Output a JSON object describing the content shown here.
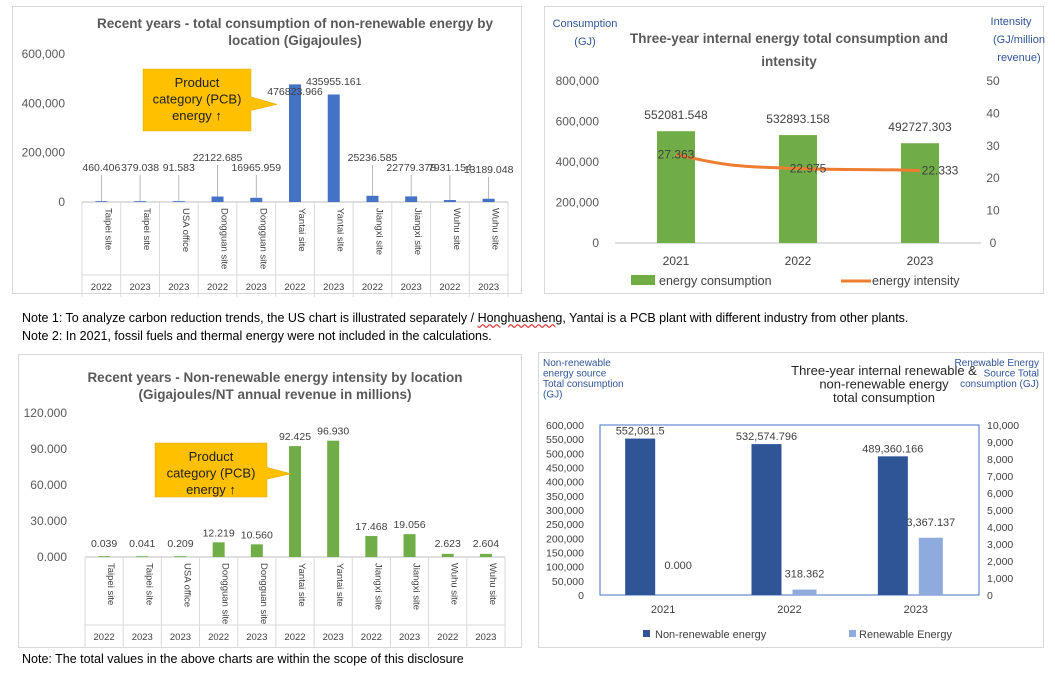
{
  "notes": {
    "note1_a": "Note 1: To analyze carbon reduction trends, the US chart is illustrated separately / ",
    "note1_b": "Honghuasheng",
    "note1_c": ", Yantai is a PCB plant with different industry from other plants.",
    "note2": "Note 2: In 2021, fossil fuels and thermal energy were not included in the calculations.",
    "note3": "Note: The total values in the above charts are within the scope of this disclosure"
  },
  "colors": {
    "blue_bar": "#4472c4",
    "green_bar": "#70ad47",
    "orange_line": "#ed7d31",
    "navy_bar": "#2f5597",
    "light_blue_bar": "#8faadc",
    "callout_fill": "#ffc000",
    "title_text": "#595959",
    "axis_title_blue": "#2f5597"
  },
  "chart_data": [
    {
      "id": "chart1",
      "type": "bar",
      "title": "Recent years - total consumption of non-renewable energy by location  (Gigajoules)",
      "title_lines": [
        "Recent years - total consumption of non-renewable energy by",
        "location  (Gigajoules)"
      ],
      "categories": [
        {
          "site": "Taipei site",
          "year": "2022"
        },
        {
          "site": "Taipei site",
          "year": "2023"
        },
        {
          "site": "USA office",
          "year": "2023"
        },
        {
          "site": "Dongguan site",
          "year": "2022"
        },
        {
          "site": "Dongguan site",
          "year": "2023"
        },
        {
          "site": "Yantai site",
          "year": "2022"
        },
        {
          "site": "Yantai site",
          "year": "2023"
        },
        {
          "site": "Jiangxi site",
          "year": "2022"
        },
        {
          "site": "Jiangxi site",
          "year": "2023"
        },
        {
          "site": "Wuhu site",
          "year": "2022"
        },
        {
          "site": "Wuhu site",
          "year": "2023"
        }
      ],
      "values": [
        460.406,
        379.038,
        91.583,
        22122.685,
        16965.959,
        476823.966,
        435955.161,
        25236.585,
        22779.378,
        7931.154,
        13189.048
      ],
      "data_labels": [
        "460.406",
        "379.038",
        "91.583",
        "22122.685",
        "16965.959",
        "476823.966",
        "435955.161",
        "25236.585",
        "22779.378",
        "7931.154",
        "13189.048"
      ],
      "yticks": [
        "0",
        "200,000",
        "400,000",
        "600,000"
      ],
      "ylim": [
        0,
        600000
      ],
      "callout_lines": [
        "Product",
        "category (PCB)",
        "energy ↑"
      ],
      "grid": false
    },
    {
      "id": "chart2",
      "type": "bar+line",
      "title_lines": [
        "Three-year internal energy total consumption and",
        "intensity"
      ],
      "y_left_title": [
        "Consumption",
        "(GJ)"
      ],
      "y_right_title": [
        "Intensity",
        "(GJ/million",
        "revenue)"
      ],
      "categories": [
        "2021",
        "2022",
        "2023"
      ],
      "series": [
        {
          "name": "energy consumption",
          "type": "bar",
          "values": [
            552081.548,
            532893.158,
            492727.303
          ],
          "labels": [
            "552081.548",
            "532893.158",
            "492727.303"
          ]
        },
        {
          "name": "energy intensity",
          "type": "line",
          "values": [
            27.363,
            22.975,
            22.333
          ],
          "labels": [
            "27.363",
            "22.975",
            "22.333"
          ]
        }
      ],
      "yticks_left": [
        "0",
        "200,000",
        "400,000",
        "600,000",
        "800,000"
      ],
      "ylim_left": [
        0,
        800000
      ],
      "yticks_right": [
        "0",
        "10",
        "20",
        "30",
        "40",
        "50"
      ],
      "ylim_right": [
        0,
        50
      ],
      "legend": "bottom"
    },
    {
      "id": "chart3",
      "type": "bar",
      "title_lines": [
        "Recent years - Non-renewable energy intensity by location",
        "(Gigajoules/NT annual revenue in millions)"
      ],
      "categories": [
        {
          "site": "Taipei site",
          "year": "2022"
        },
        {
          "site": "Taipei site",
          "year": "2023"
        },
        {
          "site": "USA office",
          "year": "2023"
        },
        {
          "site": "Dongguan site",
          "year": "2022"
        },
        {
          "site": "Dongguan site",
          "year": "2023"
        },
        {
          "site": "Yantai site",
          "year": "2022"
        },
        {
          "site": "Yantai site",
          "year": "2023"
        },
        {
          "site": "Jiangxi site",
          "year": "2022"
        },
        {
          "site": "Jiangxi site",
          "year": "2023"
        },
        {
          "site": "Wuhu site",
          "year": "2022"
        },
        {
          "site": "Wuhu site",
          "year": "2023"
        }
      ],
      "values": [
        0.039,
        0.041,
        0.209,
        12.219,
        10.56,
        92.425,
        96.93,
        17.468,
        19.056,
        2.623,
        2.604
      ],
      "data_labels": [
        "0.039",
        "0.041",
        "0.209",
        "12.219",
        "10.560",
        "92.425",
        "96.930",
        "17.468",
        "19.056",
        "2.623",
        "2.604"
      ],
      "yticks": [
        "0.000",
        "30.000",
        "60.000",
        "90.000",
        "120.000"
      ],
      "ylim": [
        0,
        120
      ],
      "callout_lines": [
        "Product",
        "category (PCB)",
        "energy ↑"
      ],
      "grid": false
    },
    {
      "id": "chart4",
      "type": "bar",
      "title_lines": [
        "Three-year internal renewable &",
        "non-renewable energy",
        "total consumption"
      ],
      "y_left_title": [
        "Non-renewable",
        "energy source",
        "Total consumption",
        "(GJ)"
      ],
      "y_right_title": [
        "Renewable Energy",
        "Source Total",
        "consumption (GJ)"
      ],
      "categories": [
        "2021",
        "2022",
        "2023"
      ],
      "series": [
        {
          "name": "Non-renewable energy",
          "axis": "left",
          "values": [
            552081.5,
            532574.796,
            489360.166
          ],
          "labels": [
            "552,081.5",
            "532,574.796",
            "489,360.166"
          ]
        },
        {
          "name": "Renewable Energy",
          "axis": "right",
          "values": [
            0,
            318.362,
            3367.137
          ],
          "labels": [
            "0.000",
            "318.362",
            "3,367.137"
          ]
        }
      ],
      "yticks_left": [
        "0",
        "50,000",
        "100,000",
        "150,000",
        "200,000",
        "250,000",
        "300,000",
        "350,000",
        "400,000",
        "450,000",
        "500,000",
        "550,000",
        "600,000"
      ],
      "ylim_left": [
        0,
        600000
      ],
      "yticks_right": [
        "0",
        "1,000",
        "2,000",
        "3,000",
        "4,000",
        "5,000",
        "6,000",
        "7,000",
        "8,000",
        "9,000",
        "10,000"
      ],
      "ylim_right": [
        0,
        10000
      ],
      "legend": "bottom"
    }
  ]
}
